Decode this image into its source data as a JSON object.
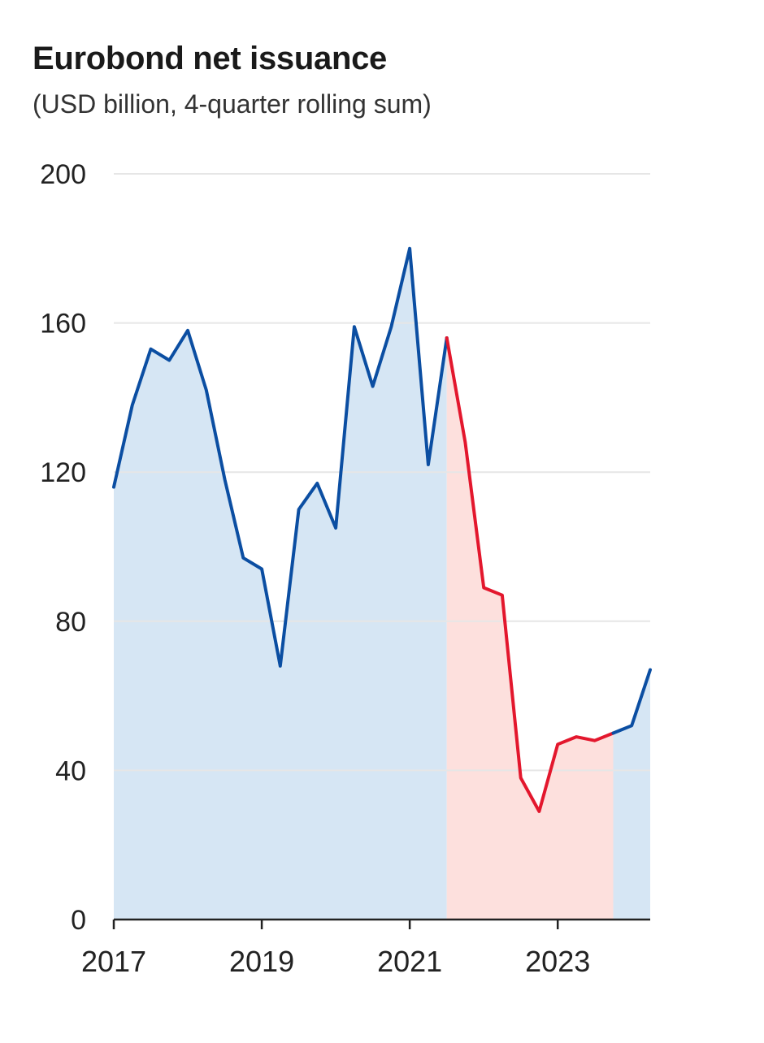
{
  "chart_data": {
    "type": "area",
    "title": "Eurobond net issuance",
    "subtitle": "(USD billion, 4-quarter rolling sum)",
    "xlabel": "",
    "ylabel": "",
    "x_ticks": [
      "2017",
      "2019",
      "2021",
      "2023"
    ],
    "y_ticks": [
      "0",
      "40",
      "80",
      "120",
      "160",
      "200"
    ],
    "ylim": [
      0,
      200
    ],
    "xlim": [
      2017.0,
      2024.25
    ],
    "grid": true,
    "legend": "none",
    "x": [
      2017.0,
      2017.25,
      2017.5,
      2017.75,
      2018.0,
      2018.25,
      2018.5,
      2018.75,
      2019.0,
      2019.25,
      2019.5,
      2019.75,
      2020.0,
      2020.25,
      2020.5,
      2020.75,
      2021.0,
      2021.25,
      2021.5,
      2021.75,
      2022.0,
      2022.25,
      2022.5,
      2022.75,
      2023.0,
      2023.25,
      2023.5,
      2023.75,
      2024.0,
      2024.25
    ],
    "values": [
      116,
      138,
      153,
      150,
      158,
      142,
      118,
      97,
      94,
      68,
      110,
      117,
      105,
      159,
      143,
      159,
      180,
      122,
      156,
      128,
      89,
      87,
      38,
      29,
      47,
      49,
      48,
      50,
      52,
      67
    ],
    "highlight": {
      "from": 2021.5,
      "to": 2023.75
    },
    "colors": {
      "line": "#0b4ea2",
      "area": "#d6e6f4",
      "highlight_line": "#e3172d",
      "highlight_area": "#fde0dd",
      "grid": "#e6e6e6",
      "axis": "#222222"
    }
  }
}
